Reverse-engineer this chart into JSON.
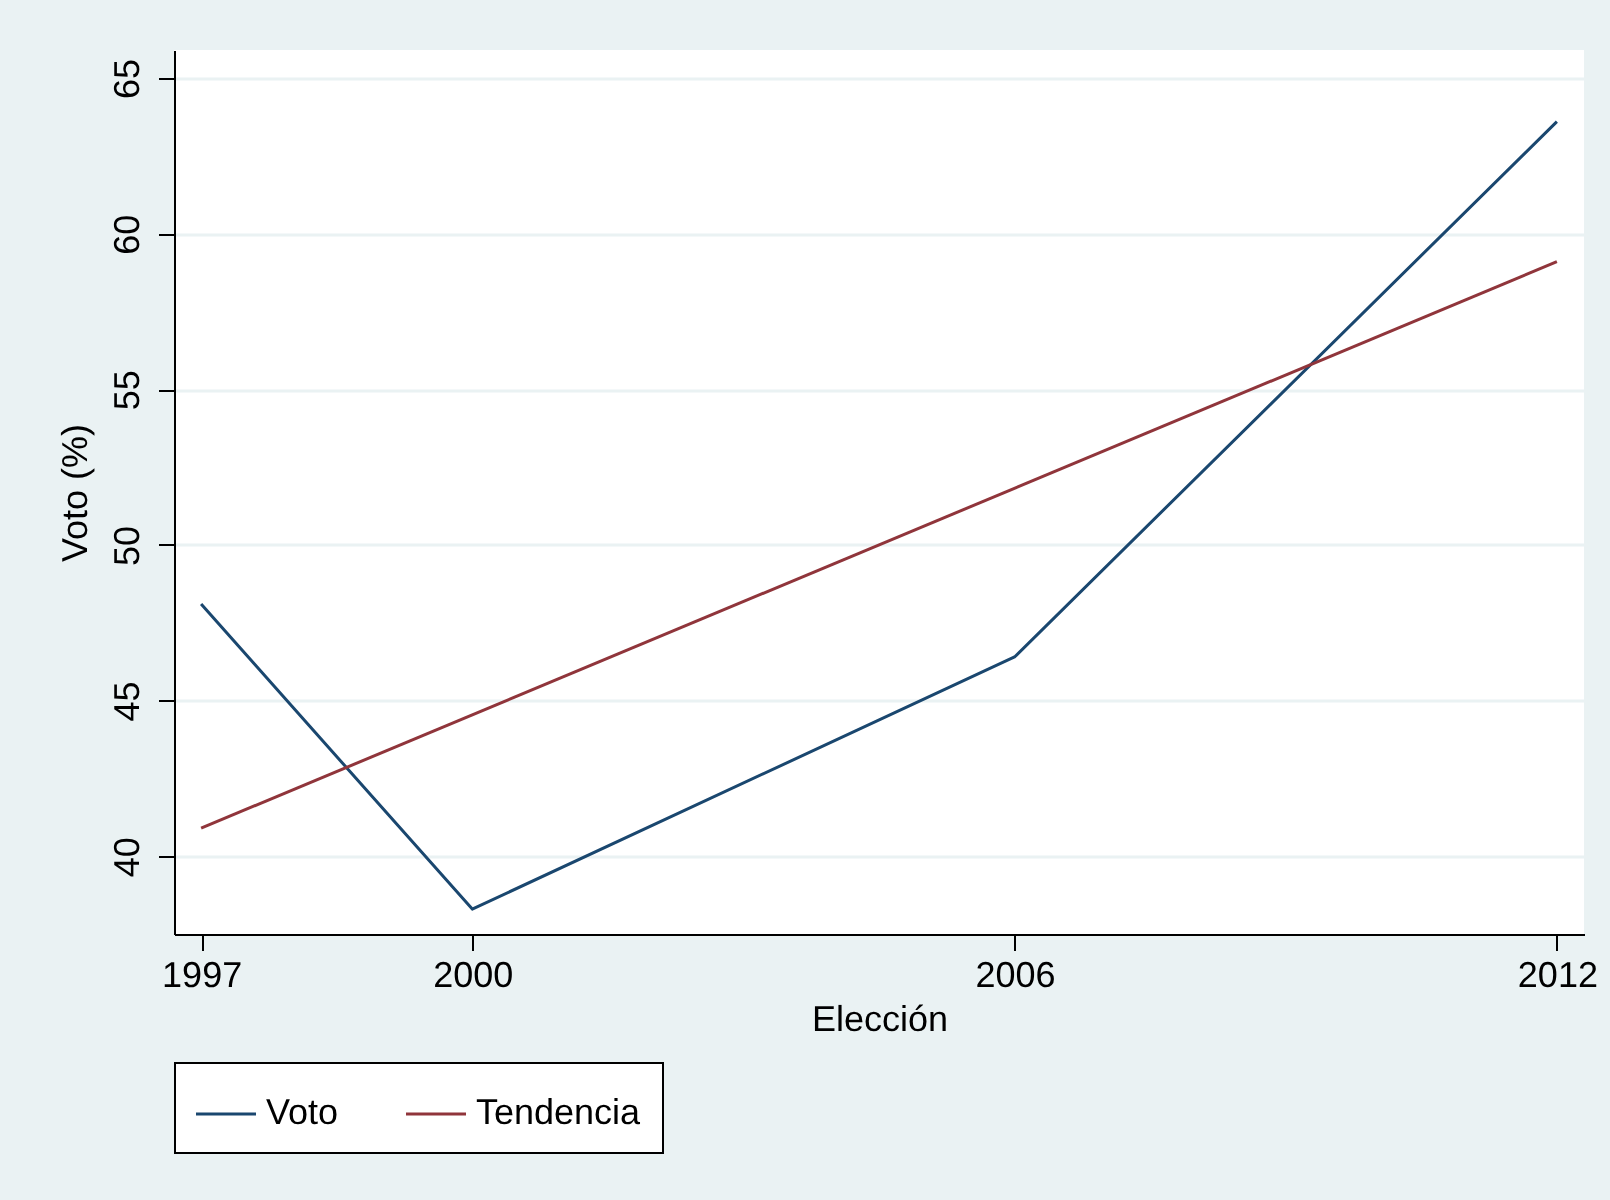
{
  "chart_data": {
    "type": "line",
    "xlabel": "Elección",
    "ylabel": "Voto (%)",
    "x": [
      1997,
      2000,
      2006,
      2012
    ],
    "series": [
      {
        "name": "Voto",
        "color": "#1a476f",
        "values": [
          48.1,
          38.3,
          46.4,
          63.6
        ]
      },
      {
        "name": "Tendencia",
        "color": "#90353b",
        "x": [
          1997,
          2012
        ],
        "values": [
          40.9,
          59.1
        ]
      }
    ],
    "xlim": [
      1996.7,
      2012.3
    ],
    "xticks": [
      1997,
      2000,
      2006,
      2012
    ],
    "ylim": [
      37.5,
      65.9
    ],
    "yticks": [
      40,
      45,
      50,
      55,
      60,
      65
    ],
    "grid": "y",
    "legend": "bottom",
    "marker": "none",
    "line_style": "solid"
  }
}
